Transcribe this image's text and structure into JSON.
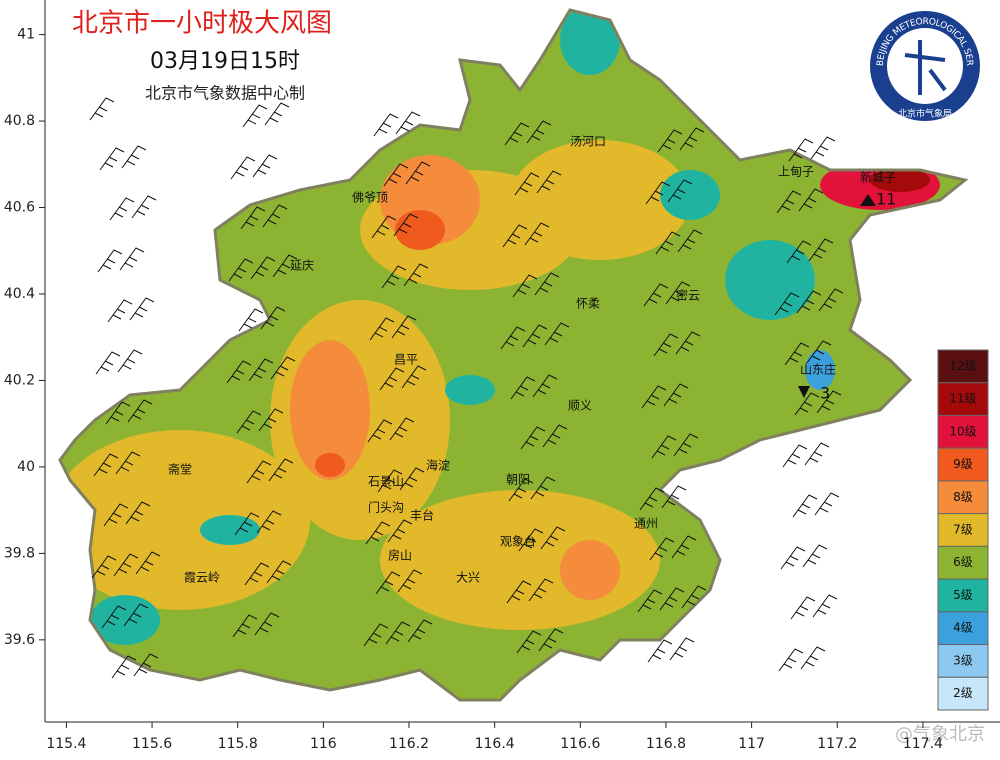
{
  "header": {
    "title": "北京市一小时极大风图",
    "time": "03月19日15时",
    "producer": "北京市气象数据中心制"
  },
  "logo": {
    "ring_text": "BEIJING METEOROLOGICAL SERVICE",
    "name": "北京市气象局"
  },
  "axes": {
    "xlim": [
      115.35,
      117.58
    ],
    "ylim": [
      39.41,
      41.08
    ],
    "xticks": [
      115.4,
      115.6,
      115.8,
      116,
      116.2,
      116.4,
      116.6,
      116.8,
      117,
      117.2,
      117.4
    ],
    "yticks": [
      41,
      40.8,
      40.6,
      40.4,
      40.2,
      40,
      39.8,
      39.6
    ]
  },
  "places": [
    "汤河口",
    "上甸子",
    "新城子",
    "佛爷顶",
    "延庆",
    "怀柔",
    "密云",
    "昌平",
    "顺义",
    "海淀",
    "朝阳",
    "石景山",
    "门头沟",
    "丰台",
    "房山",
    "大兴",
    "通州",
    "观象台",
    "霞云岭",
    "斋堂",
    "山东庄"
  ],
  "extremes": [
    {
      "place": "新城子",
      "value": 11
    },
    {
      "place": "山东庄",
      "value": 3
    }
  ],
  "legend": [
    {
      "label": "12级",
      "color": "#5a1010"
    },
    {
      "label": "11级",
      "color": "#a50a0a"
    },
    {
      "label": "10级",
      "color": "#e2123a"
    },
    {
      "label": "9级",
      "color": "#f05a1e"
    },
    {
      "label": "8级",
      "color": "#f58c3c"
    },
    {
      "label": "7级",
      "color": "#e2b92a"
    },
    {
      "label": "6级",
      "color": "#8cb432"
    },
    {
      "label": "5级",
      "color": "#20b4a0"
    },
    {
      "label": "4级",
      "color": "#3ca0dc"
    },
    {
      "label": "3级",
      "color": "#8cc8f0"
    },
    {
      "label": "2级",
      "color": "#c8e6fa"
    }
  ],
  "watermark": "@气象北京"
}
